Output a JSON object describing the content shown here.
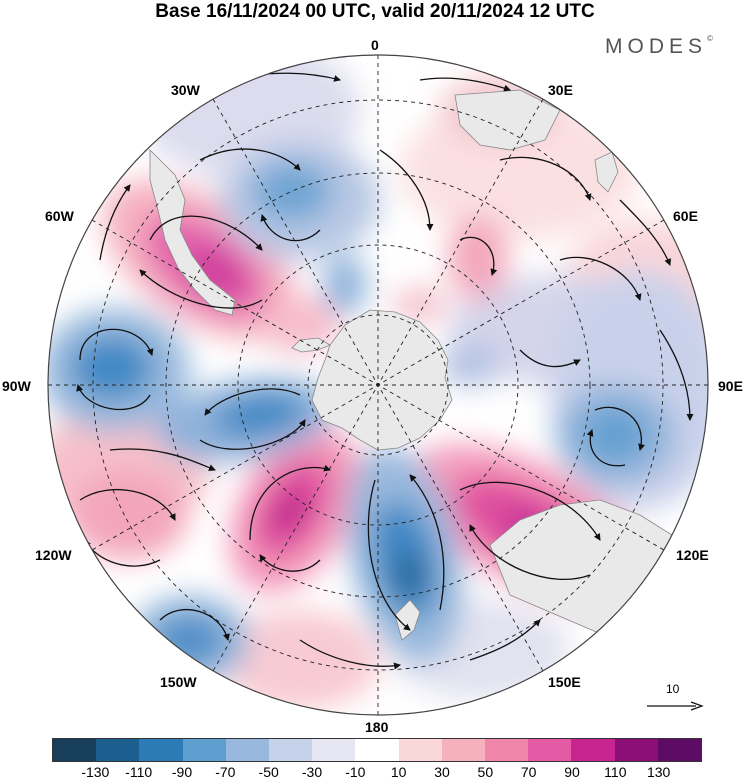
{
  "title": "Base 16/11/2024 00 UTC, valid 20/11/2024 12 UTC",
  "brand": "MODES",
  "brand_mark": "©",
  "longitude_labels": {
    "lon_0": "0",
    "lon_30e": "30E",
    "lon_60e": "60E",
    "lon_90e": "90E",
    "lon_120e": "120E",
    "lon_150e": "150E",
    "lon_180": "180",
    "lon_150w": "150W",
    "lon_120w": "120W",
    "lon_90w": "90W",
    "lon_60w": "60W",
    "lon_30w": "30W"
  },
  "reference_vector": {
    "label": "10"
  },
  "colorbar": {
    "colors": [
      "#173f5c",
      "#1c5e8e",
      "#2c7bb6",
      "#5e9fd0",
      "#98b9dd",
      "#c6d2ea",
      "#e6e6f2",
      "#ffffff",
      "#fad7d9",
      "#f5b1bc",
      "#f087aa",
      "#e45aa5",
      "#c82590",
      "#8c0f78",
      "#5e0b66"
    ],
    "ticks": [
      "-130",
      "-110",
      "-90",
      "-70",
      "-50",
      "-30",
      "-10",
      "10",
      "30",
      "50",
      "70",
      "90",
      "110",
      "130"
    ]
  },
  "colors": {
    "continent": "#e9e9e9",
    "stream_line": "#111111",
    "grid": "#222222"
  }
}
